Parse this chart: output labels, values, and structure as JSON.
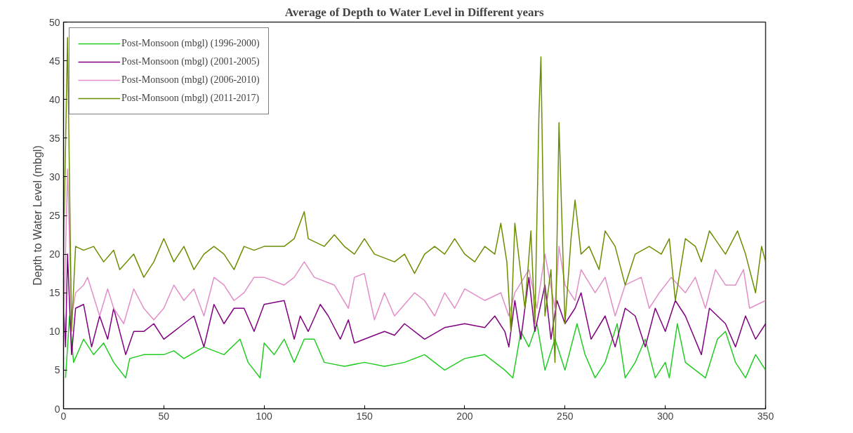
{
  "chart_data": {
    "type": "line",
    "title": "Average of Depth to Water Level in Different years",
    "ylabel": "Depth to Water Level (mbgl)",
    "xlim": [
      0,
      350
    ],
    "ylim": [
      0,
      50
    ],
    "xticks": [
      0,
      50,
      100,
      150,
      200,
      250,
      300,
      350
    ],
    "yticks": [
      0,
      5,
      10,
      15,
      20,
      25,
      30,
      35,
      40,
      45,
      50
    ],
    "grid": false,
    "legend": "top left",
    "line_style": "solid",
    "marker": "none",
    "series": [
      {
        "name": "Post-Monsoon (mbgl) (1996-2000)",
        "color": "#22cc22",
        "x": [
          1,
          3,
          5,
          10,
          15,
          20,
          25,
          31,
          33,
          40,
          50,
          55,
          60,
          70,
          80,
          88,
          92,
          98,
          100,
          105,
          110,
          115,
          120,
          125,
          130,
          140,
          150,
          160,
          170,
          180,
          190,
          200,
          210,
          220,
          224,
          228,
          232,
          236,
          240,
          245,
          250,
          256,
          260,
          265,
          270,
          276,
          280,
          285,
          290,
          295,
          300,
          302,
          306,
          310,
          315,
          320,
          326,
          330,
          335,
          340,
          345,
          350
        ],
        "values": [
          4,
          12,
          6,
          9,
          7,
          8.5,
          6,
          4,
          6.5,
          7,
          7,
          7.5,
          6.5,
          8,
          7,
          9,
          6,
          4,
          8.5,
          7,
          9,
          6,
          9,
          9,
          6,
          5.5,
          6,
          5.5,
          6,
          7,
          5,
          6.5,
          7,
          5,
          4,
          10,
          8,
          11,
          5,
          9,
          5,
          11,
          7,
          4,
          6,
          11,
          4,
          6,
          9,
          4,
          6,
          4,
          11,
          6,
          5,
          4,
          9,
          10,
          6,
          4,
          7,
          5
        ]
      },
      {
        "name": "Post-Monsoon (mbgl) (2001-2005)",
        "color": "#800080",
        "x": [
          0,
          1,
          2,
          4,
          6,
          10,
          14,
          18,
          22,
          25,
          31,
          35,
          40,
          45,
          50,
          55,
          60,
          65,
          70,
          75,
          80,
          85,
          90,
          95,
          100,
          110,
          115,
          118,
          122,
          128,
          132,
          138,
          142,
          145,
          150,
          160,
          165,
          170,
          180,
          190,
          200,
          210,
          215,
          220,
          222,
          225,
          228,
          232,
          235,
          240,
          243,
          246,
          250,
          255,
          258,
          263,
          270,
          275,
          280,
          285,
          290,
          295,
          300,
          305,
          310,
          318,
          322,
          330,
          335,
          340,
          345,
          350
        ],
        "values": [
          14,
          8,
          20,
          7,
          13,
          13.5,
          8,
          12,
          9,
          13,
          7,
          10,
          10,
          11,
          9,
          10,
          11,
          12,
          8,
          13.5,
          11,
          13,
          13,
          10,
          13.5,
          14,
          9,
          12,
          10,
          13.5,
          12,
          9,
          11.5,
          8.5,
          9,
          10,
          9.5,
          11,
          9,
          10.5,
          11,
          10.5,
          12,
          10,
          8,
          14,
          9,
          17,
          10,
          16,
          9,
          14,
          11,
          13,
          15,
          9,
          12,
          8,
          13,
          12,
          8,
          13,
          10,
          14,
          12,
          7,
          13,
          11,
          8,
          12,
          9,
          11
        ]
      },
      {
        "name": "Post-Monsoon (mbgl) (2006-2010)",
        "color": "#e38ec8",
        "x": [
          0,
          2,
          4,
          6,
          10,
          12,
          18,
          22,
          25,
          30,
          35,
          40,
          45,
          50,
          55,
          60,
          65,
          70,
          75,
          80,
          85,
          90,
          95,
          100,
          110,
          115,
          120,
          125,
          135,
          142,
          145,
          150,
          155,
          160,
          165,
          170,
          175,
          180,
          185,
          190,
          195,
          200,
          210,
          218,
          222,
          225,
          232,
          236,
          240,
          245,
          247,
          250,
          255,
          258,
          265,
          270,
          275,
          280,
          288,
          292,
          297,
          303,
          310,
          315,
          320,
          325,
          330,
          335,
          339,
          342,
          350
        ],
        "values": [
          10,
          31,
          12,
          15,
          16,
          17,
          12,
          15.5,
          13,
          11,
          15.5,
          13,
          11.5,
          13,
          16,
          14,
          15.5,
          12,
          17,
          16,
          14,
          15,
          17,
          17,
          16,
          17,
          19,
          17,
          16,
          13,
          17,
          17.5,
          11.5,
          15,
          12,
          13.5,
          15,
          14,
          12,
          15,
          13,
          15.5,
          14,
          15,
          12,
          15,
          18,
          13,
          20,
          13,
          21,
          16,
          14,
          18,
          15,
          17,
          12,
          16,
          17,
          13,
          15,
          17,
          15,
          17,
          13,
          18,
          16,
          16,
          18,
          13,
          14
        ]
      },
      {
        "name": "Post-Monsoon (mbgl) (2011-2017)",
        "color": "#6b8e00",
        "x": [
          0,
          2,
          4,
          6,
          10,
          15,
          20,
          25,
          28,
          35,
          40,
          45,
          50,
          55,
          60,
          65,
          70,
          75,
          80,
          85,
          90,
          95,
          100,
          110,
          115,
          120,
          122,
          130,
          135,
          140,
          145,
          150,
          155,
          165,
          170,
          175,
          180,
          185,
          190,
          195,
          200,
          205,
          210,
          215,
          218,
          221,
          223,
          225,
          230,
          233,
          235,
          237,
          238,
          240,
          243,
          245,
          247,
          250,
          253,
          255,
          258,
          262,
          267,
          270,
          275,
          280,
          285,
          292,
          298,
          302,
          305,
          310,
          315,
          318,
          322,
          330,
          336,
          340,
          345,
          348,
          350
        ],
        "values": [
          20,
          48,
          10,
          21,
          20.5,
          21,
          19,
          20.5,
          18,
          20,
          17,
          19,
          22,
          19,
          21,
          18,
          20,
          21,
          20,
          18,
          21,
          20.5,
          21,
          21,
          22,
          25.5,
          22,
          21,
          22.5,
          21,
          20,
          22,
          20,
          19,
          20,
          17.5,
          20,
          21,
          20,
          22,
          20,
          19,
          21,
          20,
          24,
          19,
          10,
          24,
          13,
          23,
          11,
          38,
          45.5,
          12,
          18,
          6,
          37,
          11,
          22,
          27,
          20,
          21,
          18,
          23,
          21,
          16,
          20,
          21,
          20,
          22,
          14,
          22,
          21,
          19,
          23,
          20,
          23,
          20,
          15,
          21,
          19
        ]
      }
    ]
  }
}
